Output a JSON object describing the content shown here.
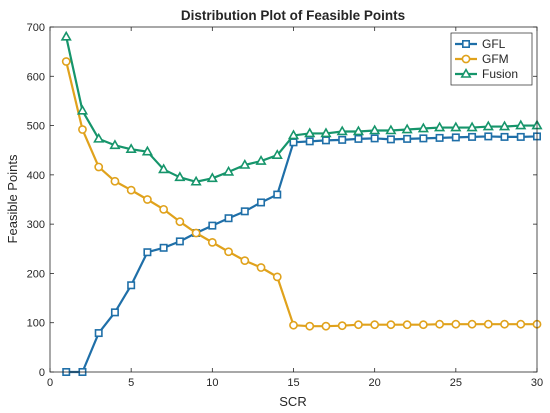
{
  "chart_data": {
    "type": "line",
    "title": "Distribution Plot of Feasible Points",
    "xlabel": "SCR",
    "ylabel": "Feasible Points",
    "xlim": [
      0,
      30
    ],
    "ylim": [
      0,
      700
    ],
    "xticks": [
      0,
      5,
      10,
      15,
      20,
      25,
      30
    ],
    "yticks": [
      0,
      100,
      200,
      300,
      400,
      500,
      600,
      700
    ],
    "legend_position": "top-right",
    "grid": false,
    "x": [
      1,
      2,
      3,
      4,
      5,
      6,
      7,
      8,
      9,
      10,
      11,
      12,
      13,
      14,
      15,
      16,
      17,
      18,
      19,
      20,
      21,
      22,
      23,
      24,
      25,
      26,
      27,
      28,
      29,
      30
    ],
    "series": [
      {
        "name": "GFL",
        "marker": "square",
        "color": "#1f6fa8",
        "values": [
          0,
          0,
          79,
          121,
          176,
          243,
          252,
          265,
          282,
          297,
          312,
          326,
          344,
          360,
          466,
          468,
          470,
          471,
          473,
          474,
          472,
          473,
          474,
          475,
          476,
          477,
          478,
          477,
          477,
          478
        ]
      },
      {
        "name": "GFM",
        "marker": "circle",
        "color": "#e0a21c",
        "values": [
          630,
          492,
          416,
          387,
          369,
          350,
          330,
          305,
          282,
          263,
          244,
          226,
          212,
          193,
          95,
          93,
          93,
          94,
          96,
          96,
          96,
          96,
          96,
          97,
          97,
          97,
          97,
          97,
          97,
          97
        ]
      },
      {
        "name": "Fusion",
        "marker": "triangle",
        "color": "#16956b",
        "values": [
          680,
          530,
          473,
          460,
          452,
          447,
          411,
          395,
          386,
          393,
          406,
          420,
          428,
          440,
          480,
          484,
          484,
          488,
          488,
          490,
          490,
          492,
          494,
          496,
          496,
          496,
          498,
          498,
          500,
          500
        ]
      }
    ]
  }
}
